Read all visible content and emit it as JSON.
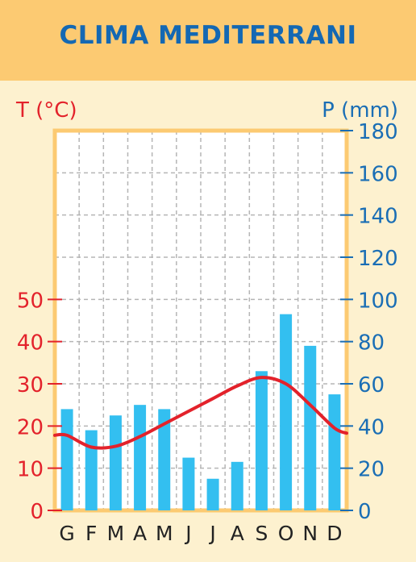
{
  "title": "CLIMA MEDITERRANI",
  "colors": {
    "temperature": "#e3222b",
    "precipitation_bar": "#33bff0",
    "precipitation_axis": "#1a6eb5",
    "title": "#1468b3",
    "frame": "#fcca72",
    "background": "#fdf1cf"
  },
  "chart_data": {
    "type": "bar",
    "categories": [
      "G",
      "F",
      "M",
      "A",
      "M",
      "J",
      "J",
      "A",
      "S",
      "O",
      "N",
      "D"
    ],
    "series": [
      {
        "type": "bar",
        "axis": "right",
        "values": [
          48,
          38,
          45,
          50,
          48,
          25,
          15,
          23,
          66,
          93,
          78,
          55
        ]
      },
      {
        "type": "line",
        "axis": "left",
        "values": [
          17.8,
          15,
          15.2,
          17.5,
          20.5,
          23.5,
          26.5,
          29.5,
          31.5,
          30,
          25,
          19.5
        ]
      }
    ],
    "y_left": {
      "label": "T (°C)",
      "ticks": [
        0,
        10,
        20,
        30,
        40,
        50
      ],
      "range": [
        0,
        50
      ]
    },
    "y_right": {
      "label": "P (mm)",
      "ticks": [
        0,
        20,
        40,
        60,
        80,
        100,
        120,
        140,
        160,
        180
      ],
      "range": [
        0,
        180
      ]
    },
    "grid": true
  }
}
